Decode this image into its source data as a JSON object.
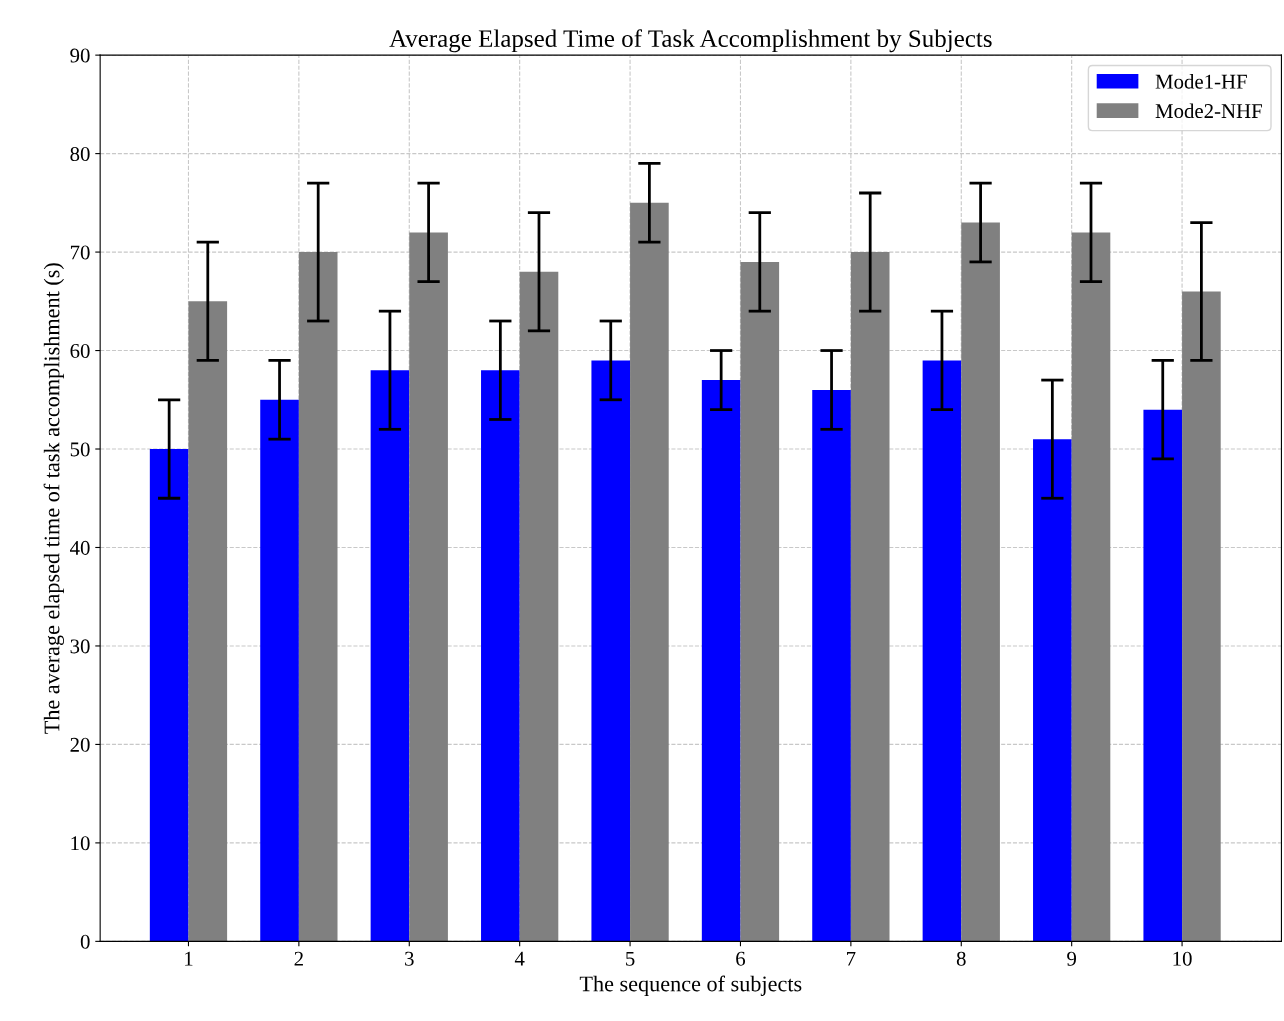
{
  "chart_data": {
    "type": "bar",
    "title": "Average Elapsed Time of Task Accomplishment by Subjects",
    "xlabel": "The sequence of subjects",
    "ylabel": "The average elapsed time of task accomplishment (s)",
    "categories": [
      "1",
      "2",
      "3",
      "4",
      "5",
      "6",
      "7",
      "8",
      "9",
      "10"
    ],
    "series": [
      {
        "name": "Mode1-HF",
        "color": "#0000ff",
        "values": [
          50,
          55,
          58,
          58,
          59,
          57,
          56,
          59,
          51,
          54
        ],
        "errors": [
          5,
          4,
          6,
          5,
          4,
          3,
          4,
          5,
          6,
          5
        ]
      },
      {
        "name": "Mode2-NHF",
        "color": "#808080",
        "values": [
          65,
          70,
          72,
          68,
          75,
          69,
          70,
          73,
          72,
          66
        ],
        "errors": [
          6,
          7,
          5,
          6,
          4,
          5,
          6,
          4,
          5,
          7
        ]
      }
    ],
    "ylim": [
      0,
      90
    ],
    "yticks": [
      0,
      10,
      20,
      30,
      40,
      50,
      60,
      70,
      80,
      90
    ],
    "grid": true,
    "legend": "top right"
  }
}
